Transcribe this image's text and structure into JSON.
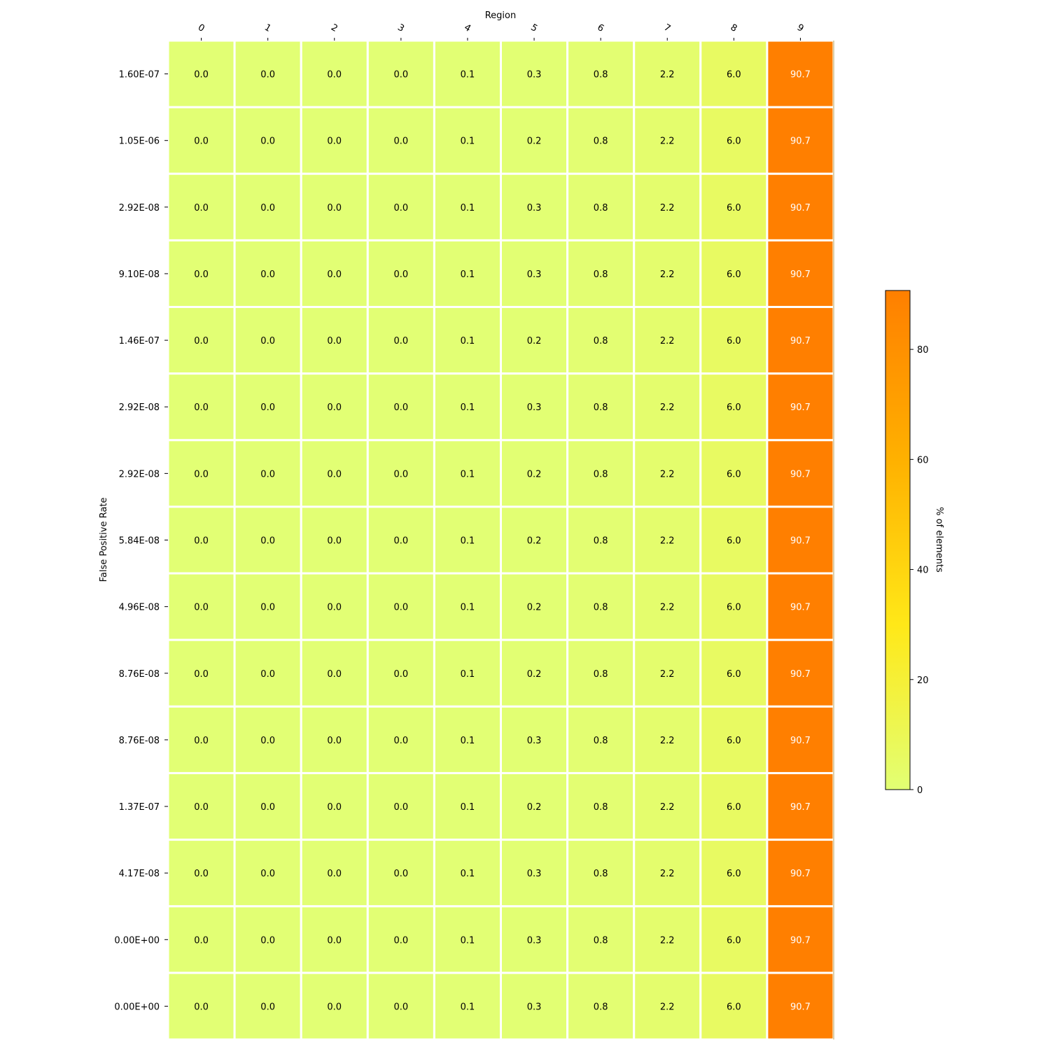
{
  "chart_data": {
    "type": "heatmap",
    "xlabel": "Region",
    "ylabel": "False Positive Rate",
    "x_categories": [
      "0",
      "1",
      "2",
      "3",
      "4",
      "5",
      "6",
      "7",
      "8",
      "9"
    ],
    "y_categories": [
      "1.60E-07",
      "1.05E-06",
      "2.92E-08",
      "9.10E-08",
      "1.46E-07",
      "2.92E-08",
      "2.92E-08",
      "5.84E-08",
      "4.96E-08",
      "8.76E-08",
      "8.76E-08",
      "1.37E-07",
      "4.17E-08",
      "0.00E+00",
      "0.00E+00"
    ],
    "values": [
      [
        0.0,
        0.0,
        0.0,
        0.0,
        0.1,
        0.3,
        0.8,
        2.2,
        6.0,
        90.7
      ],
      [
        0.0,
        0.0,
        0.0,
        0.0,
        0.1,
        0.2,
        0.8,
        2.2,
        6.0,
        90.7
      ],
      [
        0.0,
        0.0,
        0.0,
        0.0,
        0.1,
        0.3,
        0.8,
        2.2,
        6.0,
        90.7
      ],
      [
        0.0,
        0.0,
        0.0,
        0.0,
        0.1,
        0.3,
        0.8,
        2.2,
        6.0,
        90.7
      ],
      [
        0.0,
        0.0,
        0.0,
        0.0,
        0.1,
        0.2,
        0.8,
        2.2,
        6.0,
        90.7
      ],
      [
        0.0,
        0.0,
        0.0,
        0.0,
        0.1,
        0.3,
        0.8,
        2.2,
        6.0,
        90.7
      ],
      [
        0.0,
        0.0,
        0.0,
        0.0,
        0.1,
        0.2,
        0.8,
        2.2,
        6.0,
        90.7
      ],
      [
        0.0,
        0.0,
        0.0,
        0.0,
        0.1,
        0.2,
        0.8,
        2.2,
        6.0,
        90.7
      ],
      [
        0.0,
        0.0,
        0.0,
        0.0,
        0.1,
        0.2,
        0.8,
        2.2,
        6.0,
        90.7
      ],
      [
        0.0,
        0.0,
        0.0,
        0.0,
        0.1,
        0.2,
        0.8,
        2.2,
        6.0,
        90.7
      ],
      [
        0.0,
        0.0,
        0.0,
        0.0,
        0.1,
        0.3,
        0.8,
        2.2,
        6.0,
        90.7
      ],
      [
        0.0,
        0.0,
        0.0,
        0.0,
        0.1,
        0.2,
        0.8,
        2.2,
        6.0,
        90.7
      ],
      [
        0.0,
        0.0,
        0.0,
        0.0,
        0.1,
        0.3,
        0.8,
        2.2,
        6.0,
        90.7
      ],
      [
        0.0,
        0.0,
        0.0,
        0.0,
        0.1,
        0.3,
        0.8,
        2.2,
        6.0,
        90.7
      ],
      [
        0.0,
        0.0,
        0.0,
        0.0,
        0.1,
        0.3,
        0.8,
        2.2,
        6.0,
        90.7
      ]
    ],
    "value_format": "0.1f",
    "colorbar": {
      "label": "% of elements",
      "range": [
        0,
        90.7
      ],
      "ticks": [
        0,
        20,
        40,
        60,
        80
      ],
      "colors": [
        "#e2ff74",
        "#ffe818",
        "#ffb100",
        "#ff7f00"
      ]
    },
    "x_axis_position": "top",
    "grid": false
  }
}
